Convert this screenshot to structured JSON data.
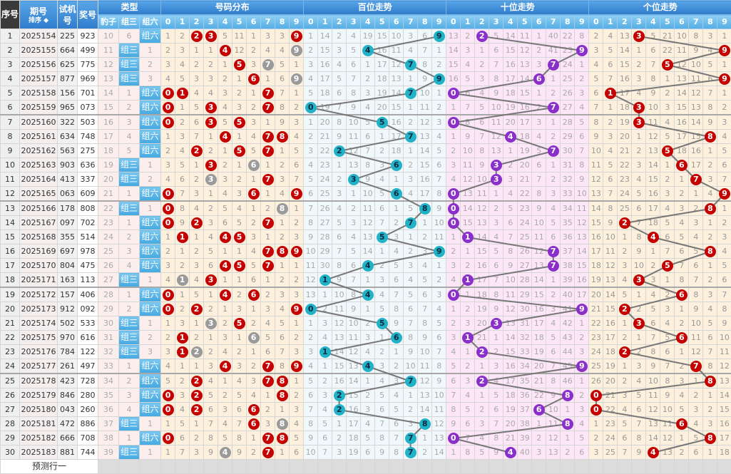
{
  "header": {
    "seq": "序号",
    "issue": "期号",
    "sort": "排序",
    "trial": "试机号",
    "prize": "奖号",
    "type": "类型",
    "type_cols": [
      "豹子",
      "组三",
      "组六"
    ],
    "distribution": "号码分布",
    "hundreds": "百位走势",
    "tens": "十位走势",
    "units": "个位走势",
    "digits": [
      "0",
      "1",
      "2",
      "3",
      "4",
      "5",
      "6",
      "7",
      "8",
      "9"
    ]
  },
  "type_labels": {
    "zusan": "组三",
    "zuliu": "组六"
  },
  "rows": [
    {
      "seq": "1",
      "issue": "2025154",
      "trial": "225",
      "prize": "923"
    },
    {
      "seq": "2",
      "issue": "2025155",
      "trial": "664",
      "prize": "499"
    },
    {
      "seq": "3",
      "issue": "2025156",
      "trial": "625",
      "prize": "775"
    },
    {
      "seq": "4",
      "issue": "2025157",
      "trial": "877",
      "prize": "969"
    },
    {
      "seq": "5",
      "issue": "2025158",
      "trial": "156",
      "prize": "701"
    },
    {
      "seq": "6",
      "issue": "2025159",
      "trial": "965",
      "prize": "073"
    },
    {
      "seq": "7",
      "issue": "2025160",
      "trial": "322",
      "prize": "503"
    },
    {
      "seq": "8",
      "issue": "2025161",
      "trial": "634",
      "prize": "748"
    },
    {
      "seq": "9",
      "issue": "2025162",
      "trial": "563",
      "prize": "275"
    },
    {
      "seq": "10",
      "issue": "2025163",
      "trial": "903",
      "prize": "636"
    },
    {
      "seq": "11",
      "issue": "2025164",
      "trial": "413",
      "prize": "337"
    },
    {
      "seq": "12",
      "issue": "2025165",
      "trial": "063",
      "prize": "609"
    },
    {
      "seq": "13",
      "issue": "2025166",
      "trial": "178",
      "prize": "808"
    },
    {
      "seq": "14",
      "issue": "2025167",
      "trial": "097",
      "prize": "702"
    },
    {
      "seq": "15",
      "issue": "2025168",
      "trial": "355",
      "prize": "514"
    },
    {
      "seq": "16",
      "issue": "2025169",
      "trial": "697",
      "prize": "978"
    },
    {
      "seq": "17",
      "issue": "2025170",
      "trial": "804",
      "prize": "475"
    },
    {
      "seq": "18",
      "issue": "2025171",
      "trial": "163",
      "prize": "113"
    },
    {
      "seq": "19",
      "issue": "2025172",
      "trial": "157",
      "prize": "406"
    },
    {
      "seq": "20",
      "issue": "2025173",
      "trial": "912",
      "prize": "092"
    },
    {
      "seq": "21",
      "issue": "2025174",
      "trial": "502",
      "prize": "533"
    },
    {
      "seq": "22",
      "issue": "2025175",
      "trial": "970",
      "prize": "616"
    },
    {
      "seq": "23",
      "issue": "2025176",
      "trial": "784",
      "prize": "122"
    },
    {
      "seq": "24",
      "issue": "2025177",
      "trial": "261",
      "prize": "497"
    },
    {
      "seq": "25",
      "issue": "2025178",
      "trial": "423",
      "prize": "728"
    },
    {
      "seq": "26",
      "issue": "2025179",
      "trial": "846",
      "prize": "280"
    },
    {
      "seq": "27",
      "issue": "2025180",
      "trial": "043",
      "prize": "260"
    },
    {
      "seq": "28",
      "issue": "2025181",
      "trial": "472",
      "prize": "886"
    },
    {
      "seq": "29",
      "issue": "2025182",
      "trial": "666",
      "prize": "708"
    },
    {
      "seq": "30",
      "issue": "2025183",
      "trial": "881",
      "prize": "744"
    }
  ],
  "type_omission": {
    "baozi": [
      10,
      11,
      12,
      13,
      14,
      15,
      16,
      17,
      18,
      19,
      20,
      21,
      22,
      23,
      24,
      25,
      26,
      27,
      28,
      29,
      30,
      31,
      32,
      33,
      34,
      35,
      36,
      37,
      38,
      39
    ],
    "zusan": [
      6,
      0,
      0,
      0,
      1,
      2,
      3,
      4,
      5,
      0,
      0,
      1,
      0,
      1,
      2,
      3,
      4,
      0,
      1,
      2,
      0,
      0,
      0,
      1,
      2,
      3,
      4,
      0,
      1,
      0
    ],
    "zuliu": [
      0,
      1,
      2,
      3,
      0,
      0,
      0,
      0,
      0,
      1,
      2,
      0,
      1,
      0,
      0,
      0,
      0,
      1,
      0,
      0,
      1,
      2,
      3,
      0,
      0,
      0,
      0,
      1,
      0,
      1
    ]
  },
  "distribution": [
    [
      1,
      2,
      3,
      4,
      0,
      0,
      0,
      1,
      2,
      3,
      4,
      0,
      0,
      0,
      1,
      2,
      3,
      4,
      0,
      0,
      1,
      2,
      3,
      4,
      5,
      0,
      0,
      1,
      0,
      1
    ],
    [
      2,
      3,
      4,
      5,
      0,
      1,
      2,
      3,
      4,
      5,
      6,
      7,
      8,
      9,
      0,
      1,
      2,
      0,
      1,
      2,
      3,
      0,
      0,
      1,
      2,
      3,
      4,
      5,
      6,
      7
    ],
    [
      0,
      1,
      2,
      3,
      4,
      5,
      6,
      7,
      0,
      1,
      2,
      3,
      4,
      0,
      1,
      2,
      3,
      4,
      5,
      0,
      1,
      2,
      0,
      1,
      0,
      0,
      0,
      1,
      2,
      3
    ],
    [
      0,
      1,
      2,
      3,
      4,
      0,
      0,
      1,
      2,
      0,
      0,
      1,
      2,
      3,
      4,
      5,
      6,
      0,
      1,
      2,
      0,
      1,
      2,
      3,
      4,
      5,
      6,
      7,
      8,
      9
    ],
    [
      5,
      0,
      1,
      2,
      3,
      4,
      5,
      0,
      1,
      2,
      3,
      4,
      5,
      6,
      0,
      1,
      0,
      1,
      0,
      1,
      2,
      3,
      4,
      0,
      1,
      2,
      3,
      4,
      5,
      0
    ],
    [
      11,
      12,
      0,
      1,
      2,
      3,
      0,
      1,
      0,
      1,
      2,
      3,
      4,
      5,
      0,
      1,
      0,
      1,
      2,
      3,
      0,
      1,
      2,
      3,
      4,
      5,
      6,
      7,
      8,
      9
    ],
    [
      1,
      2,
      3,
      0,
      1,
      2,
      3,
      4,
      5,
      0,
      1,
      0,
      1,
      2,
      3,
      4,
      5,
      6,
      0,
      1,
      2,
      0,
      1,
      2,
      3,
      4,
      0,
      0,
      1,
      2
    ],
    [
      3,
      4,
      0,
      1,
      0,
      0,
      1,
      0,
      0,
      1,
      0,
      1,
      2,
      0,
      1,
      0,
      0,
      1,
      2,
      3,
      4,
      5,
      6,
      0,
      0,
      1,
      2,
      3,
      0,
      0
    ],
    [
      3,
      4,
      5,
      6,
      7,
      8,
      9,
      0,
      1,
      2,
      3,
      4,
      0,
      1,
      2,
      0,
      1,
      2,
      3,
      4,
      5,
      6,
      7,
      8,
      0,
      0,
      1,
      0,
      0,
      1
    ],
    [
      0,
      0,
      1,
      0,
      1,
      2,
      3,
      4,
      5,
      6,
      7,
      0,
      1,
      2,
      3,
      0,
      1,
      2,
      3,
      0,
      1,
      2,
      3,
      0,
      1,
      2,
      3,
      4,
      5,
      6
    ]
  ],
  "hundreds": [
    [
      1,
      2,
      3,
      4,
      5,
      0,
      1,
      2,
      3,
      4,
      5,
      6,
      7,
      8,
      9,
      10,
      11,
      12,
      13,
      0,
      1,
      2,
      3,
      4,
      5,
      6,
      7,
      8,
      9,
      10
    ],
    [
      14,
      15,
      16,
      17,
      18,
      19,
      20,
      21,
      22,
      23,
      24,
      25,
      26,
      27,
      28,
      29,
      30,
      0,
      1,
      2,
      3,
      4,
      0,
      1,
      2,
      3,
      4,
      5,
      6,
      7
    ],
    [
      2,
      3,
      4,
      5,
      6,
      7,
      8,
      9,
      0,
      1,
      2,
      3,
      4,
      5,
      6,
      7,
      8,
      9,
      10,
      11,
      12,
      13,
      14,
      15,
      16,
      0,
      0,
      1,
      2,
      3
    ],
    [
      4,
      5,
      6,
      7,
      8,
      9,
      10,
      11,
      12,
      13,
      0,
      1,
      2,
      3,
      4,
      5,
      6,
      7,
      8,
      9,
      10,
      11,
      12,
      13,
      14,
      15,
      16,
      17,
      18,
      19
    ],
    [
      19,
      0,
      1,
      2,
      3,
      4,
      5,
      6,
      7,
      8,
      9,
      10,
      11,
      12,
      13,
      14,
      0,
      1,
      0,
      1,
      2,
      3,
      4,
      0,
      1,
      2,
      3,
      4,
      5,
      6
    ],
    [
      15,
      16,
      17,
      18,
      19,
      20,
      0,
      1,
      2,
      3,
      4,
      5,
      6,
      7,
      0,
      1,
      2,
      3,
      4,
      5,
      0,
      1,
      2,
      3,
      4,
      5,
      6,
      7,
      8,
      9
    ],
    [
      10,
      11,
      12,
      13,
      14,
      15,
      16,
      17,
      18,
      0,
      1,
      0,
      1,
      2,
      3,
      4,
      5,
      6,
      7,
      8,
      9,
      0,
      1,
      2,
      3,
      4,
      5,
      6,
      7,
      8
    ],
    [
      3,
      4,
      0,
      1,
      0,
      1,
      2,
      0,
      1,
      2,
      3,
      4,
      5,
      0,
      1,
      2,
      3,
      4,
      5,
      6,
      7,
      8,
      9,
      10,
      0,
      1,
      2,
      3,
      0,
      0
    ],
    [
      6,
      7,
      8,
      9,
      10,
      11,
      12,
      13,
      14,
      15,
      16,
      17,
      0,
      1,
      2,
      3,
      4,
      5,
      6,
      7,
      8,
      9,
      10,
      11,
      12,
      13,
      14,
      0,
      1,
      2
    ],
    [
      0,
      1,
      2,
      0,
      1,
      2,
      3,
      4,
      5,
      6,
      7,
      8,
      9,
      10,
      11,
      0,
      1,
      2,
      3,
      4,
      5,
      6,
      7,
      8,
      9,
      10,
      11,
      12,
      13,
      14
    ]
  ],
  "tens": [
    [
      13,
      14,
      15,
      16,
      0,
      1,
      0,
      1,
      2,
      3,
      4,
      0,
      0,
      0,
      1,
      2,
      3,
      4,
      0,
      1,
      2,
      3,
      4,
      5,
      6,
      7,
      8,
      9,
      0,
      1
    ],
    [
      2,
      3,
      4,
      5,
      6,
      7,
      8,
      9,
      10,
      11,
      12,
      13,
      14,
      15,
      0,
      1,
      2,
      0,
      1,
      2,
      3,
      0,
      1,
      2,
      3,
      4,
      5,
      6,
      7,
      8
    ],
    [
      0,
      1,
      2,
      3,
      4,
      5,
      6,
      7,
      8,
      9,
      10,
      11,
      12,
      13,
      14,
      15,
      16,
      17,
      18,
      19,
      20,
      21,
      0,
      1,
      0,
      1,
      2,
      3,
      4,
      5
    ],
    [
      5,
      6,
      7,
      8,
      9,
      10,
      11,
      12,
      13,
      0,
      0,
      1,
      2,
      3,
      4,
      5,
      6,
      7,
      8,
      9,
      0,
      1,
      2,
      3,
      4,
      5,
      6,
      7,
      8,
      9
    ],
    [
      14,
      15,
      16,
      17,
      18,
      19,
      20,
      0,
      1,
      2,
      3,
      4,
      5,
      6,
      7,
      8,
      9,
      10,
      11,
      12,
      13,
      14,
      15,
      16,
      17,
      18,
      19,
      20,
      21,
      0
    ],
    [
      11,
      12,
      13,
      14,
      15,
      16,
      17,
      18,
      19,
      20,
      21,
      22,
      23,
      24,
      25,
      26,
      27,
      28,
      29,
      30,
      31,
      32,
      33,
      34,
      35,
      36,
      37,
      38,
      39,
      40
    ],
    [
      1,
      2,
      3,
      0,
      1,
      2,
      3,
      4,
      5,
      6,
      7,
      8,
      9,
      10,
      11,
      12,
      13,
      14,
      15,
      16,
      17,
      18,
      19,
      20,
      21,
      22,
      0,
      1,
      2,
      3
    ],
    [
      40,
      41,
      0,
      1,
      2,
      0,
      1,
      2,
      0,
      1,
      2,
      3,
      4,
      5,
      6,
      0,
      0,
      1,
      2,
      3,
      4,
      5,
      6,
      7,
      8,
      9,
      10,
      11,
      12,
      13
    ],
    [
      22,
      23,
      24,
      25,
      26,
      27,
      28,
      29,
      30,
      31,
      32,
      33,
      34,
      35,
      36,
      37,
      38,
      39,
      40,
      41,
      42,
      43,
      44,
      45,
      46,
      0,
      1,
      0,
      1,
      2
    ],
    [
      8,
      0,
      1,
      2,
      3,
      4,
      5,
      6,
      7,
      8,
      9,
      10,
      11,
      12,
      13,
      14,
      15,
      16,
      17,
      0,
      1,
      2,
      3,
      0,
      1,
      2,
      3,
      4,
      5,
      6
    ]
  ],
  "units": [
    [
      2,
      3,
      4,
      5,
      6,
      7,
      8,
      9,
      10,
      11,
      12,
      13,
      14,
      15,
      16,
      17,
      18,
      19,
      20,
      21,
      22,
      23,
      24,
      25,
      26,
      0,
      0,
      1,
      2,
      3
    ],
    [
      4,
      5,
      6,
      7,
      0,
      1,
      2,
      3,
      4,
      5,
      6,
      7,
      8,
      9,
      10,
      11,
      12,
      13,
      14,
      15,
      16,
      17,
      18,
      19,
      20,
      21,
      22,
      23,
      24,
      25
    ],
    [
      13,
      14,
      15,
      16,
      17,
      18,
      19,
      20,
      21,
      22,
      23,
      24,
      25,
      0,
      1,
      2,
      3,
      4,
      5,
      0,
      1,
      2,
      0,
      1,
      2,
      3,
      4,
      5,
      6,
      7
    ],
    [
      0,
      1,
      2,
      3,
      4,
      0,
      0,
      1,
      2,
      3,
      4,
      5,
      6,
      7,
      8,
      9,
      10,
      0,
      1,
      2,
      0,
      1,
      2,
      3,
      4,
      5,
      6,
      7,
      8,
      9
    ],
    [
      5,
      6,
      7,
      8,
      9,
      10,
      11,
      12,
      13,
      14,
      15,
      16,
      17,
      18,
      0,
      1,
      2,
      3,
      4,
      5,
      6,
      7,
      8,
      9,
      10,
      11,
      12,
      13,
      14,
      0
    ],
    [
      21,
      22,
      0,
      1,
      2,
      3,
      4,
      5,
      0,
      1,
      2,
      3,
      4,
      5,
      6,
      7,
      0,
      1,
      2,
      3,
      4,
      5,
      6,
      7,
      8,
      9,
      10,
      11,
      12,
      13
    ],
    [
      10,
      11,
      12,
      13,
      14,
      15,
      16,
      17,
      18,
      0,
      1,
      2,
      3,
      4,
      5,
      6,
      7,
      8,
      0,
      1,
      2,
      0,
      1,
      2,
      3,
      4,
      5,
      0,
      1,
      2
    ],
    [
      8,
      9,
      10,
      11,
      12,
      13,
      14,
      15,
      16,
      17,
      0,
      1,
      2,
      3,
      4,
      5,
      6,
      7,
      8,
      9,
      10,
      11,
      12,
      0,
      1,
      2,
      3,
      4,
      5,
      6
    ],
    [
      3,
      4,
      5,
      6,
      7,
      8,
      9,
      0,
      1,
      2,
      3,
      4,
      0,
      1,
      2,
      0,
      1,
      2,
      3,
      4,
      5,
      6,
      7,
      8,
      0,
      1,
      2,
      3,
      0,
      1
    ],
    [
      1,
      0,
      1,
      0,
      1,
      2,
      3,
      4,
      5,
      6,
      7,
      0,
      1,
      2,
      3,
      4,
      5,
      6,
      7,
      8,
      9,
      10,
      11,
      12,
      13,
      14,
      15,
      16,
      17,
      18
    ]
  ],
  "footer": {
    "predict_label": "预测行一"
  },
  "colors": {
    "header_blue": "#2f7ccc",
    "subheader_blue": "#55ade4",
    "ball_red": "#c40000",
    "ball_gray": "#9a9a9a",
    "ball_teal": "#22b2c8",
    "ball_purple": "#8a2fc9",
    "trend_line": "#777777"
  }
}
